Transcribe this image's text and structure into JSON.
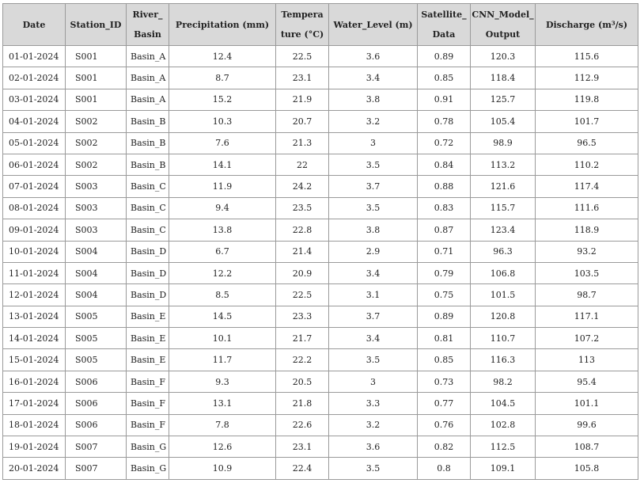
{
  "table": {
    "headers": [
      {
        "lines": [
          "Date"
        ]
      },
      {
        "lines": [
          "Station_ID"
        ]
      },
      {
        "lines": [
          "River_",
          "Basin"
        ]
      },
      {
        "lines": [
          "Precipitation (mm)"
        ]
      },
      {
        "lines": [
          "Tempera",
          "ture (°C)"
        ]
      },
      {
        "lines": [
          "Water_Level (m)"
        ]
      },
      {
        "lines": [
          "Satellite_",
          "Data"
        ]
      },
      {
        "lines": [
          "CNN_Model_",
          "Output"
        ]
      },
      {
        "lines": [
          "Discharge (m³/s)"
        ]
      }
    ],
    "rows": [
      [
        "01-01-2024",
        "S001",
        "Basin_A",
        "12.4",
        "22.5",
        "3.6",
        "0.89",
        "120.3",
        "115.6"
      ],
      [
        "02-01-2024",
        "S001",
        "Basin_A",
        "8.7",
        "23.1",
        "3.4",
        "0.85",
        "118.4",
        "112.9"
      ],
      [
        "03-01-2024",
        "S001",
        "Basin_A",
        "15.2",
        "21.9",
        "3.8",
        "0.91",
        "125.7",
        "119.8"
      ],
      [
        "04-01-2024",
        "S002",
        "Basin_B",
        "10.3",
        "20.7",
        "3.2",
        "0.78",
        "105.4",
        "101.7"
      ],
      [
        "05-01-2024",
        "S002",
        "Basin_B",
        "7.6",
        "21.3",
        "3",
        "0.72",
        "98.9",
        "96.5"
      ],
      [
        "06-01-2024",
        "S002",
        "Basin_B",
        "14.1",
        "22",
        "3.5",
        "0.84",
        "113.2",
        "110.2"
      ],
      [
        "07-01-2024",
        "S003",
        "Basin_C",
        "11.9",
        "24.2",
        "3.7",
        "0.88",
        "121.6",
        "117.4"
      ],
      [
        "08-01-2024",
        "S003",
        "Basin_C",
        "9.4",
        "23.5",
        "3.5",
        "0.83",
        "115.7",
        "111.6"
      ],
      [
        "09-01-2024",
        "S003",
        "Basin_C",
        "13.8",
        "22.8",
        "3.8",
        "0.87",
        "123.4",
        "118.9"
      ],
      [
        "10-01-2024",
        "S004",
        "Basin_D",
        "6.7",
        "21.4",
        "2.9",
        "0.71",
        "96.3",
        "93.2"
      ],
      [
        "11-01-2024",
        "S004",
        "Basin_D",
        "12.2",
        "20.9",
        "3.4",
        "0.79",
        "106.8",
        "103.5"
      ],
      [
        "12-01-2024",
        "S004",
        "Basin_D",
        "8.5",
        "22.5",
        "3.1",
        "0.75",
        "101.5",
        "98.7"
      ],
      [
        "13-01-2024",
        "S005",
        "Basin_E",
        "14.5",
        "23.3",
        "3.7",
        "0.89",
        "120.8",
        "117.1"
      ],
      [
        "14-01-2024",
        "S005",
        "Basin_E",
        "10.1",
        "21.7",
        "3.4",
        "0.81",
        "110.7",
        "107.2"
      ],
      [
        "15-01-2024",
        "S005",
        "Basin_E",
        "11.7",
        "22.2",
        "3.5",
        "0.85",
        "116.3",
        "113"
      ],
      [
        "16-01-2024",
        "S006",
        "Basin_F",
        "9.3",
        "20.5",
        "3",
        "0.73",
        "98.2",
        "95.4"
      ],
      [
        "17-01-2024",
        "S006",
        "Basin_F",
        "13.1",
        "21.8",
        "3.3",
        "0.77",
        "104.5",
        "101.1"
      ],
      [
        "18-01-2024",
        "S006",
        "Basin_F",
        "7.8",
        "22.6",
        "3.2",
        "0.76",
        "102.8",
        "99.6"
      ],
      [
        "19-01-2024",
        "S007",
        "Basin_G",
        "12.6",
        "23.1",
        "3.6",
        "0.82",
        "112.5",
        "108.7"
      ],
      [
        "20-01-2024",
        "S007",
        "Basin_G",
        "10.9",
        "22.4",
        "3.5",
        "0.8",
        "109.1",
        "105.8"
      ]
    ]
  }
}
